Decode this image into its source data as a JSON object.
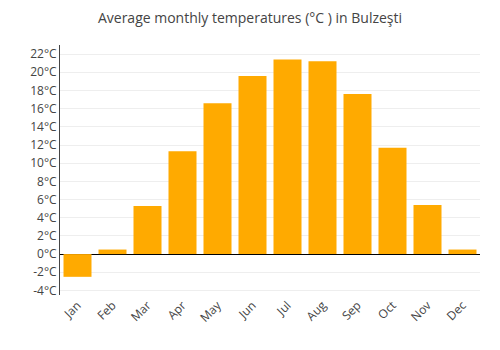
{
  "chart_data": {
    "type": "bar",
    "title": "Average monthly temperatures (°C ) in Bulzeşti",
    "categories": [
      "Jan",
      "Feb",
      "Mar",
      "Apr",
      "May",
      "Jun",
      "Jul",
      "Aug",
      "Sep",
      "Oct",
      "Nov",
      "Dec"
    ],
    "values": [
      -2.5,
      0.5,
      5.3,
      11.3,
      16.6,
      19.6,
      21.4,
      21.2,
      17.6,
      11.7,
      5.4,
      0.5
    ],
    "color": "#FFAA00",
    "ylim": [
      -4.5,
      23
    ],
    "yticks": [
      {
        "value": -4,
        "label": "-4°C"
      },
      {
        "value": -2,
        "label": "-2°C"
      },
      {
        "value": 0,
        "label": "0°C"
      },
      {
        "value": 2,
        "label": "2°C"
      },
      {
        "value": 4,
        "label": "4°C"
      },
      {
        "value": 6,
        "label": "6°C"
      },
      {
        "value": 8,
        "label": "8°C"
      },
      {
        "value": 10,
        "label": "10°C"
      },
      {
        "value": 12,
        "label": "12°C"
      },
      {
        "value": 14,
        "label": "14°C"
      },
      {
        "value": 16,
        "label": "16°C"
      },
      {
        "value": 18,
        "label": "18°C"
      },
      {
        "value": 20,
        "label": "20°C"
      },
      {
        "value": 22,
        "label": "22°C"
      }
    ],
    "grid": true
  }
}
